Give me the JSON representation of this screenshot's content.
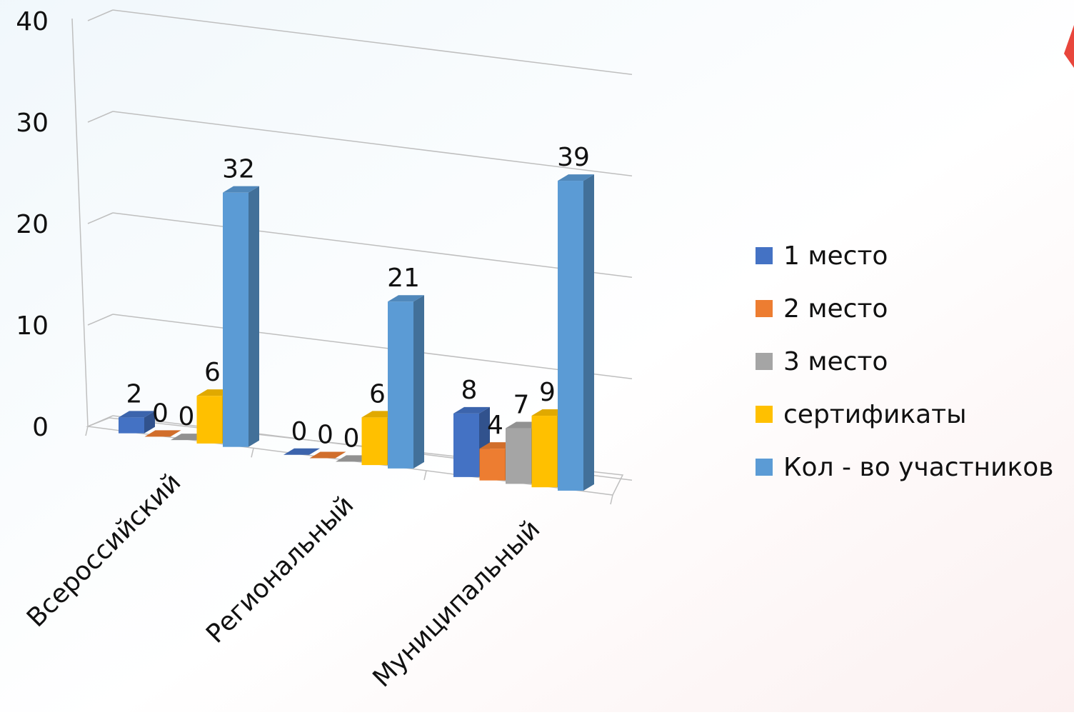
{
  "chart_data": {
    "type": "bar",
    "title": "",
    "xlabel": "",
    "ylabel": "",
    "categories": [
      "Всероссийский",
      "Региональный",
      "Муниципальный"
    ],
    "series": [
      {
        "name": "1 место",
        "values": [
          2,
          0,
          8
        ],
        "color": "#4472C4"
      },
      {
        "name": "2 место",
        "values": [
          0,
          0,
          4
        ],
        "color": "#ED7D31"
      },
      {
        "name": "3 место",
        "values": [
          0,
          0,
          7
        ],
        "color": "#A5A5A5"
      },
      {
        "name": "сертификаты",
        "values": [
          6,
          6,
          9
        ],
        "color": "#FFC000"
      },
      {
        "name": "Кол - во участников",
        "values": [
          32,
          21,
          39
        ],
        "color": "#5B9BD5"
      }
    ],
    "ylim": [
      0,
      40
    ],
    "yticks": [
      0,
      10,
      20,
      30,
      40
    ],
    "grid": true,
    "legend_position": "right",
    "style": "3d-clustered-bars"
  },
  "decor": {
    "background_colors": [
      "#dfeef7",
      "#f7dede"
    ],
    "corner_mark_color": "#e8463c"
  }
}
